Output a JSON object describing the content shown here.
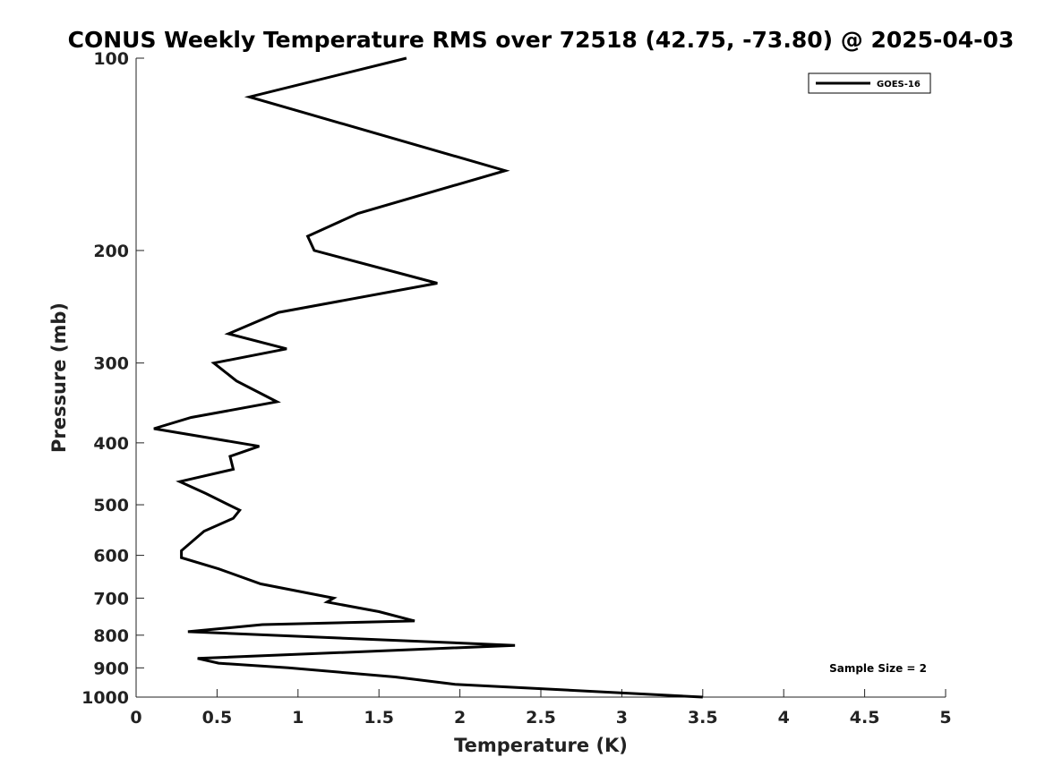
{
  "chart_data": {
    "type": "line",
    "title": "CONUS Weekly Temperature RMS over 72518 (42.75, -73.80) @ 2025-04-03",
    "xlabel": "Temperature (K)",
    "ylabel": "Pressure (mb)",
    "xlim": [
      0,
      5
    ],
    "ylim": [
      1000,
      100
    ],
    "y_scale": "log",
    "x_ticks": [
      "0",
      "0.5",
      "1",
      "1.5",
      "2",
      "2.5",
      "3",
      "3.5",
      "4",
      "4.5",
      "5"
    ],
    "y_ticks": [
      "100",
      "200",
      "300",
      "400",
      "500",
      "600",
      "700",
      "800",
      "900",
      "1000"
    ],
    "grid": false,
    "legend_position": "top-right",
    "annotation": "Sample Size = 2",
    "series": [
      {
        "name": "GOES-16",
        "color": "#000000",
        "x": [
          1.67,
          0.7,
          2.28,
          1.37,
          1.06,
          1.1,
          1.86,
          0.88,
          0.57,
          0.93,
          0.48,
          0.62,
          0.87,
          0.34,
          0.11,
          0.76,
          0.58,
          0.6,
          0.27,
          0.43,
          0.64,
          0.6,
          0.42,
          0.28,
          0.28,
          0.51,
          0.77,
          1.22,
          1.18,
          1.5,
          1.72,
          0.78,
          0.32,
          2.34,
          0.38,
          0.51,
          0.94,
          1.6,
          1.97,
          3.5
        ],
        "y": [
          100,
          115,
          150,
          175,
          190,
          200,
          225,
          250,
          270,
          285,
          300,
          320,
          345,
          365,
          380,
          405,
          420,
          440,
          460,
          480,
          510,
          525,
          550,
          590,
          605,
          630,
          665,
          700,
          710,
          735,
          760,
          770,
          790,
          830,
          870,
          885,
          900,
          930,
          955,
          1000
        ]
      }
    ]
  }
}
